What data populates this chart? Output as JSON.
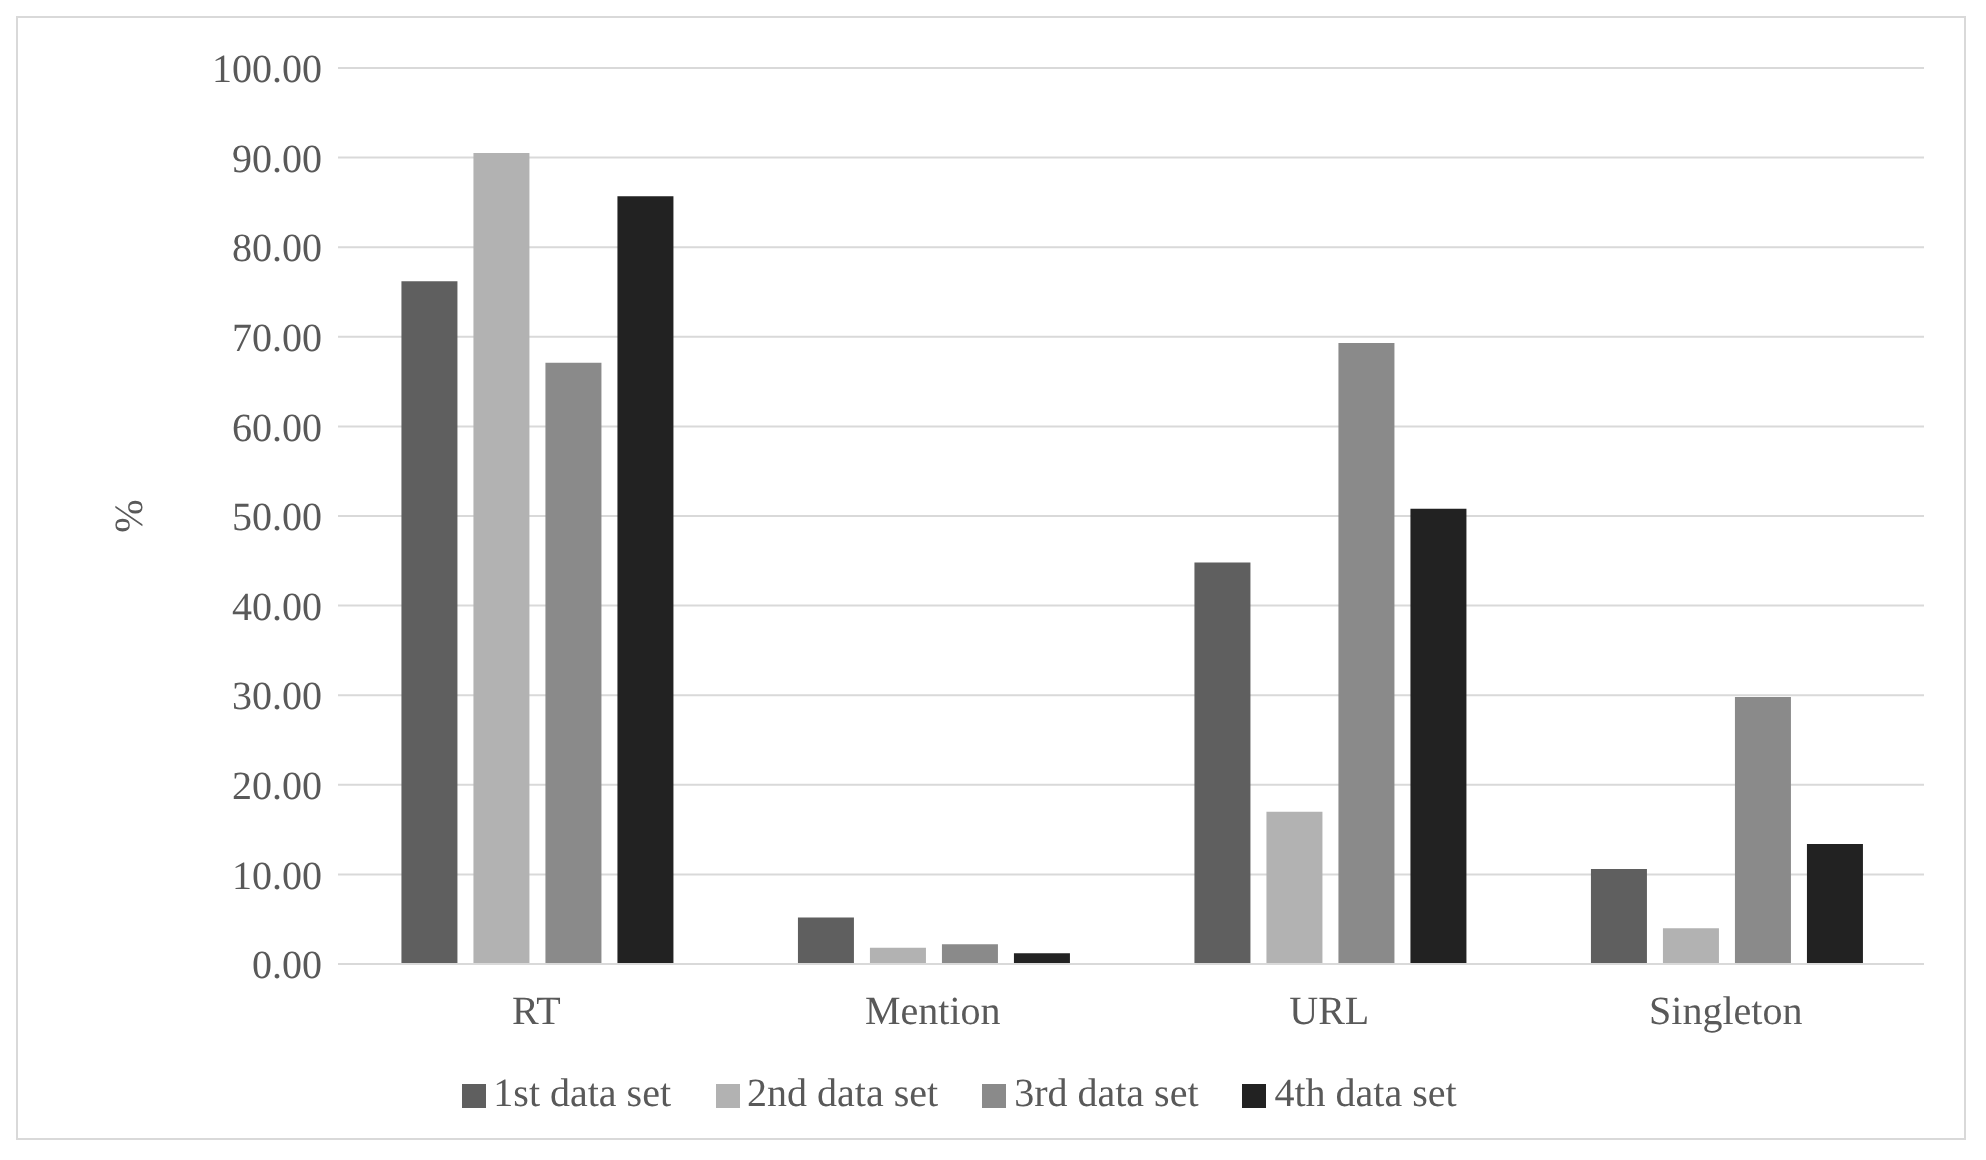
{
  "chart_data": {
    "type": "bar",
    "ylabel": "%",
    "categories": [
      "RT",
      "Mention",
      "URL",
      "Singleton"
    ],
    "series": [
      {
        "name": "1st data set",
        "color": "#5f5f5f",
        "values": [
          76.2,
          5.2,
          44.8,
          10.6
        ]
      },
      {
        "name": "2nd data set",
        "color": "#b2b2b2",
        "values": [
          90.5,
          1.8,
          17.0,
          4.0
        ]
      },
      {
        "name": "3rd data set",
        "color": "#8a8a8a",
        "values": [
          67.1,
          2.2,
          69.3,
          29.8
        ]
      },
      {
        "name": "4th data set",
        "color": "#222222",
        "values": [
          85.7,
          1.2,
          50.8,
          13.4
        ]
      }
    ],
    "ylim": [
      0,
      100
    ],
    "yticks": [
      {
        "value": 0,
        "label": "0.00"
      },
      {
        "value": 10,
        "label": "10.00"
      },
      {
        "value": 20,
        "label": "20.00"
      },
      {
        "value": 30,
        "label": "30.00"
      },
      {
        "value": 40,
        "label": "40.00"
      },
      {
        "value": 50,
        "label": "50.00"
      },
      {
        "value": 60,
        "label": "60.00"
      },
      {
        "value": 70,
        "label": "70.00"
      },
      {
        "value": 80,
        "label": "80.00"
      },
      {
        "value": 90,
        "label": "90.00"
      },
      {
        "value": 100,
        "label": "100.00"
      }
    ],
    "grid": "y",
    "legend": "bottom"
  }
}
